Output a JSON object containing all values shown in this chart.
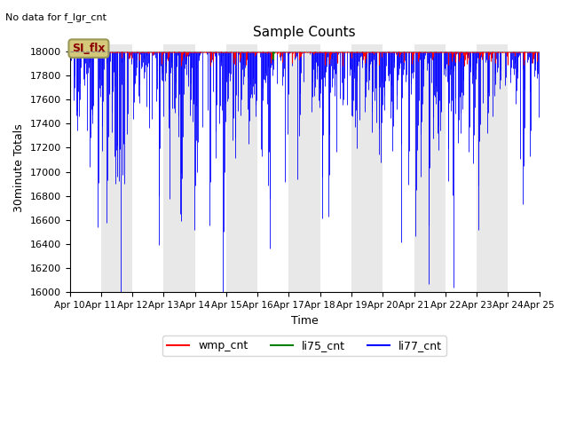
{
  "title": "Sample Counts",
  "note": "No data for f_lgr_cnt",
  "ylabel": "30minute Totals",
  "xlabel": "Time",
  "ylim": [
    16000,
    18060
  ],
  "xlim_days": [
    0,
    15
  ],
  "hline_value": 18000,
  "hline_color": "#888888",
  "legend_box_label": "SI_flx",
  "legend_box_color": "#d4c87a",
  "legend_box_border": "#999955",
  "series": {
    "wmp_cnt": {
      "color": "red",
      "label": "wmp_cnt"
    },
    "li75_cnt": {
      "color": "green",
      "label": "li75_cnt"
    },
    "li77_cnt": {
      "color": "blue",
      "label": "li77_cnt"
    }
  },
  "background_bands": [
    {
      "xmin": 0,
      "xmax": 1,
      "color": "#ffffff"
    },
    {
      "xmin": 1,
      "xmax": 2,
      "color": "#e8e8e8"
    },
    {
      "xmin": 2,
      "xmax": 3,
      "color": "#ffffff"
    },
    {
      "xmin": 3,
      "xmax": 4,
      "color": "#e8e8e8"
    },
    {
      "xmin": 4,
      "xmax": 5,
      "color": "#ffffff"
    },
    {
      "xmin": 5,
      "xmax": 6,
      "color": "#e8e8e8"
    },
    {
      "xmin": 6,
      "xmax": 7,
      "color": "#ffffff"
    },
    {
      "xmin": 7,
      "xmax": 8,
      "color": "#e8e8e8"
    },
    {
      "xmin": 8,
      "xmax": 9,
      "color": "#ffffff"
    },
    {
      "xmin": 9,
      "xmax": 10,
      "color": "#e8e8e8"
    },
    {
      "xmin": 10,
      "xmax": 11,
      "color": "#ffffff"
    },
    {
      "xmin": 11,
      "xmax": 12,
      "color": "#e8e8e8"
    },
    {
      "xmin": 12,
      "xmax": 13,
      "color": "#ffffff"
    },
    {
      "xmin": 13,
      "xmax": 14,
      "color": "#e8e8e8"
    },
    {
      "xmin": 14,
      "xmax": 15,
      "color": "#ffffff"
    }
  ],
  "xtick_positions": [
    0,
    1,
    2,
    3,
    4,
    5,
    6,
    7,
    8,
    9,
    10,
    11,
    12,
    13,
    14,
    15
  ],
  "xtick_labels": [
    "Apr 10",
    "Apr 11",
    "Apr 12",
    "Apr 13",
    "Apr 14",
    "Apr 15",
    "Apr 16",
    "Apr 17",
    "Apr 18",
    "Apr 19",
    "Apr 20",
    "Apr 21",
    "Apr 22",
    "Apr 23",
    "Apr 24",
    "Apr 25"
  ],
  "ytick_positions": [
    16000,
    16200,
    16400,
    16600,
    16800,
    17000,
    17200,
    17400,
    17600,
    17800,
    18000
  ],
  "figsize": [
    6.4,
    4.8
  ],
  "dpi": 100
}
